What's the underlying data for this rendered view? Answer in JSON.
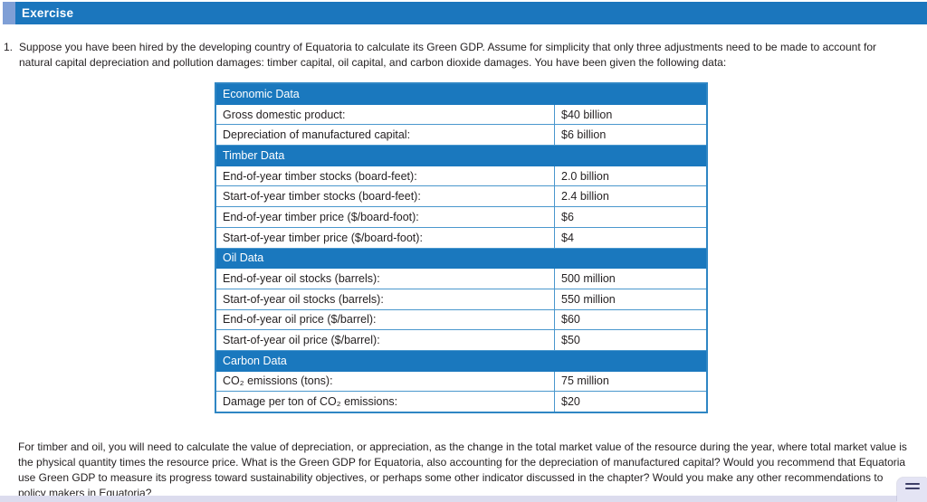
{
  "header": {
    "title": "Exercise"
  },
  "colors": {
    "accent_blue": "#1b76bd",
    "tab_light_blue": "#7f9fd6",
    "table_header_blue": "#1a78be",
    "table_border_blue": "#4a97cd",
    "text": "#231f20",
    "bottom_strip": "#dcdcee",
    "handle_lines": "#3e3f68"
  },
  "problem": {
    "number": "1.",
    "text": "Suppose you have been hired by the developing country of Equatoria to calculate its Green GDP. Assume for simplicity that only three adjustments need to be made to account for natural capital depreciation and pollution damages: timber capital, oil capital, and carbon dioxide damages. You have been given the following data:"
  },
  "table": {
    "sections": [
      {
        "title": "Economic Data",
        "rows": [
          {
            "label": "Gross domestic product:",
            "value": "$40 billion"
          },
          {
            "label": "Depreciation of manufactured capital:",
            "value": "$6 billion"
          }
        ]
      },
      {
        "title": "Timber Data",
        "rows": [
          {
            "label": "End-of-year timber stocks (board-feet):",
            "value": "2.0 billion"
          },
          {
            "label": "Start-of-year timber stocks (board-feet):",
            "value": "2.4 billion"
          },
          {
            "label": "End-of-year timber price ($/board-foot):",
            "value": "$6"
          },
          {
            "label": "Start-of-year timber price ($/board-foot):",
            "value": "$4"
          }
        ]
      },
      {
        "title": "Oil Data",
        "rows": [
          {
            "label": "End-of-year oil stocks (barrels):",
            "value": "500 million"
          },
          {
            "label": "Start-of-year oil stocks (barrels):",
            "value": "550 million"
          },
          {
            "label": "End-of-year oil price ($/barrel):",
            "value": "$60"
          },
          {
            "label": "Start-of-year oil price ($/barrel):",
            "value": "$50"
          }
        ]
      },
      {
        "title": "Carbon Data",
        "rows": [
          {
            "label": "CO₂ emissions (tons):",
            "value": "75 million"
          },
          {
            "label": "Damage per ton of CO₂ emissions:",
            "value": "$20"
          }
        ]
      }
    ]
  },
  "footer": {
    "text": "For timber and oil, you will need to calculate the value of depreciation, or appreciation, as the change in the total market value of the resource during the year, where total market value is the physical quantity times the resource price. What is the Green GDP for Equatoria, also accounting for the depreciation of manufactured capital? Would you recommend that Equatoria use Green GDP to measure its progress toward sustainability objectives, or perhaps some other indicator discussed in the chapter? Would you make any other recommendations to policy makers in Equatoria?"
  }
}
